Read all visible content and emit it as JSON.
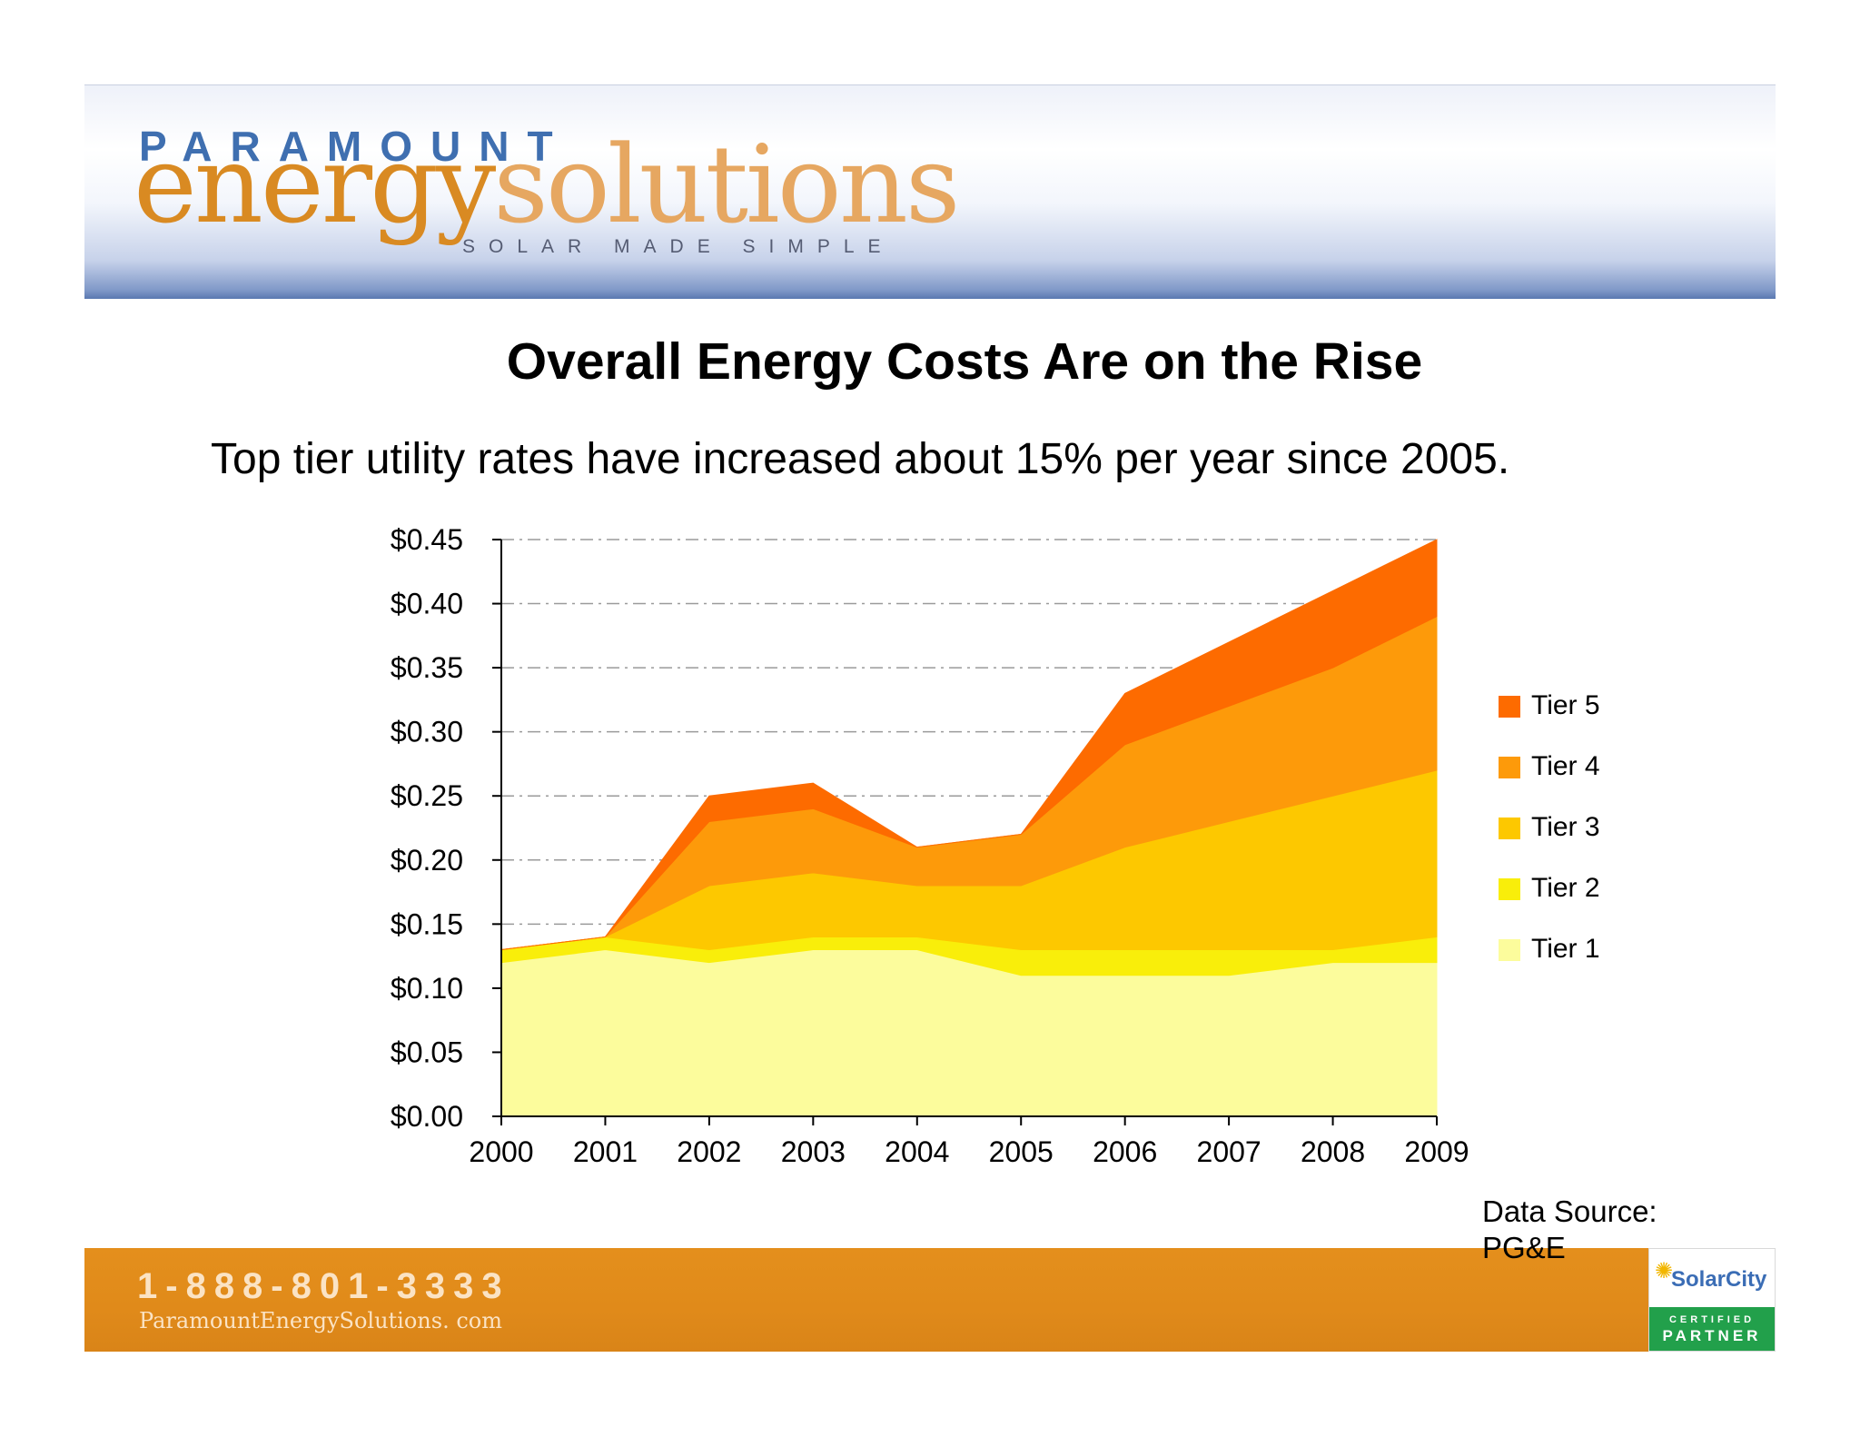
{
  "header": {
    "brand_top": "PARAMOUNT",
    "brand_main_a": "energy",
    "brand_main_b": "solutions",
    "tagline": "SOLAR MADE SIMPLE"
  },
  "slide": {
    "title": "Overall Energy Costs Are on the Rise",
    "subtitle": "Top tier utility rates have increased about 15% per year since 2005.",
    "source_line1": "Data Source:",
    "source_line2": "PG&E"
  },
  "footer": {
    "phone": "1-888-801-3333",
    "website": "ParamountEnergySolutions. com",
    "partner_brand": "SolarCity",
    "partner_certified": "CERTIFIED",
    "partner_label": "PARTNER"
  },
  "colors": {
    "tier1": "#fcfc9c",
    "tier2": "#f9ee0a",
    "tier3": "#fdc800",
    "tier4": "#fd9a0a",
    "tier5": "#fd6b00"
  },
  "chart_data": {
    "type": "area",
    "stacked": true,
    "title": "",
    "xlabel": "",
    "ylabel": "",
    "x": [
      "2000",
      "2001",
      "2002",
      "2003",
      "2004",
      "2005",
      "2006",
      "2007",
      "2008",
      "2009"
    ],
    "ylim": [
      0,
      0.45
    ],
    "yticks": [
      "$0.00",
      "$0.05",
      "$0.10",
      "$0.15",
      "$0.20",
      "$0.25",
      "$0.30",
      "$0.35",
      "$0.40",
      "$0.45"
    ],
    "grid": true,
    "legend_position": "right",
    "series": [
      {
        "name": "Tier 1",
        "values": [
          0.12,
          0.13,
          0.12,
          0.13,
          0.13,
          0.11,
          0.11,
          0.11,
          0.12,
          0.12
        ]
      },
      {
        "name": "Tier 2",
        "values": [
          0.01,
          0.01,
          0.01,
          0.01,
          0.01,
          0.02,
          0.02,
          0.02,
          0.01,
          0.02
        ]
      },
      {
        "name": "Tier 3",
        "values": [
          0.0,
          0.0,
          0.05,
          0.05,
          0.04,
          0.05,
          0.08,
          0.1,
          0.12,
          0.13
        ]
      },
      {
        "name": "Tier 4",
        "values": [
          0.0,
          0.0,
          0.05,
          0.05,
          0.03,
          0.04,
          0.08,
          0.09,
          0.1,
          0.12
        ]
      },
      {
        "name": "Tier 5",
        "values": [
          0.0,
          0.0,
          0.02,
          0.02,
          0.0,
          0.0,
          0.04,
          0.05,
          0.06,
          0.06
        ]
      }
    ]
  }
}
